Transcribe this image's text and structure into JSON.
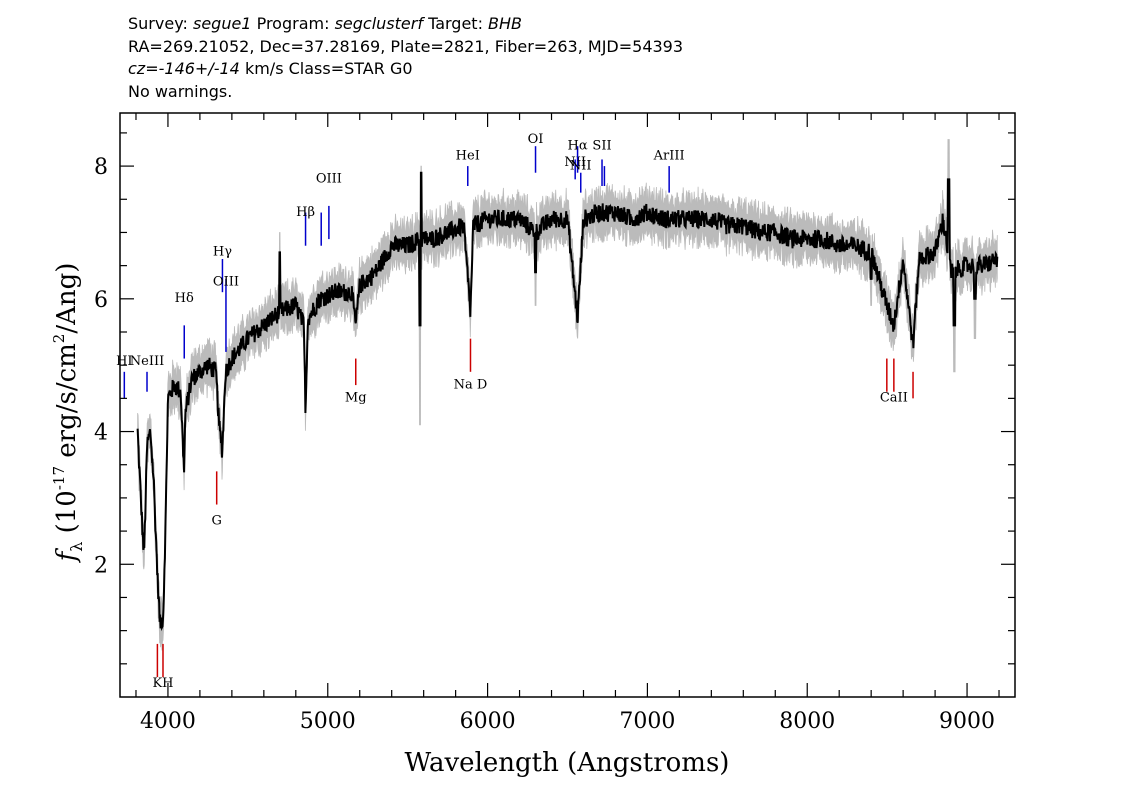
{
  "header": {
    "survey_label": "Survey:",
    "survey": "segue1",
    "program_label": "Program:",
    "program": "segclusterf",
    "target_label": "Target:",
    "target": "BHB",
    "line2": "RA=269.21052, Dec=37.28169, Plate=2821, Fiber=263, MJD=54393",
    "cz_label": "cz=",
    "cz_value": "-146+/-14",
    "cz_rest": " km/s Class=STAR G0",
    "warnings": "No warnings."
  },
  "chart_data": {
    "type": "line",
    "xlabel": "Wavelength (Angstroms)",
    "ylabel_f": "f",
    "ylabel_sub": "λ",
    "ylabel_pre": " (10",
    "ylabel_exp": "-17",
    "ylabel_mid": " erg/s/cm",
    "ylabel_exp2": "2",
    "ylabel_post": "/Ang)",
    "xlim": [
      3700,
      9300
    ],
    "ylim": [
      0,
      8.8
    ],
    "xticks": [
      4000,
      5000,
      6000,
      7000,
      8000,
      9000
    ],
    "xtick_labels": [
      "4000",
      "5000",
      "6000",
      "7000",
      "8000",
      "9000"
    ],
    "yticks": [
      2,
      4,
      6,
      8
    ],
    "ytick_labels": [
      "2",
      "4",
      "6",
      "8"
    ],
    "colors": {
      "flux": "#000000",
      "error": "#bbbbbb",
      "emission": "#0000cc",
      "absorption": "#cc0000"
    },
    "flux_anchors": [
      [
        3810,
        4.0
      ],
      [
        3830,
        3.0
      ],
      [
        3850,
        2.1
      ],
      [
        3870,
        3.8
      ],
      [
        3890,
        4.0
      ],
      [
        3910,
        3.3
      ],
      [
        3935,
        1.8
      ],
      [
        3950,
        1.1
      ],
      [
        3970,
        1.2
      ],
      [
        3985,
        2.6
      ],
      [
        4000,
        4.5
      ],
      [
        4040,
        4.7
      ],
      [
        4080,
        4.6
      ],
      [
        4100,
        3.4
      ],
      [
        4110,
        4.3
      ],
      [
        4150,
        4.8
      ],
      [
        4200,
        4.9
      ],
      [
        4250,
        5.0
      ],
      [
        4300,
        4.9
      ],
      [
        4320,
        4.1
      ],
      [
        4340,
        3.7
      ],
      [
        4360,
        4.9
      ],
      [
        4400,
        5.1
      ],
      [
        4500,
        5.4
      ],
      [
        4600,
        5.6
      ],
      [
        4700,
        5.8
      ],
      [
        4800,
        5.9
      ],
      [
        4850,
        5.6
      ],
      [
        4861,
        4.3
      ],
      [
        4875,
        5.7
      ],
      [
        4950,
        6.0
      ],
      [
        5050,
        6.1
      ],
      [
        5150,
        6.1
      ],
      [
        5175,
        5.6
      ],
      [
        5200,
        6.2
      ],
      [
        5300,
        6.4
      ],
      [
        5400,
        6.8
      ],
      [
        5500,
        6.8
      ],
      [
        5577,
        6.9
      ],
      [
        5650,
        6.9
      ],
      [
        5750,
        7.0
      ],
      [
        5850,
        7.1
      ],
      [
        5893,
        5.8
      ],
      [
        5910,
        7.1
      ],
      [
        6000,
        7.2
      ],
      [
        6100,
        7.2
      ],
      [
        6200,
        7.2
      ],
      [
        6300,
        7.0
      ],
      [
        6400,
        7.2
      ],
      [
        6500,
        7.2
      ],
      [
        6563,
        5.7
      ],
      [
        6600,
        7.2
      ],
      [
        6700,
        7.3
      ],
      [
        6800,
        7.3
      ],
      [
        6900,
        7.2
      ],
      [
        7000,
        7.3
      ],
      [
        7100,
        7.2
      ],
      [
        7200,
        7.2
      ],
      [
        7300,
        7.2
      ],
      [
        7400,
        7.2
      ],
      [
        7500,
        7.1
      ],
      [
        7600,
        7.1
      ],
      [
        7700,
        7.0
      ],
      [
        7800,
        7.0
      ],
      [
        7900,
        6.9
      ],
      [
        8000,
        6.9
      ],
      [
        8100,
        6.9
      ],
      [
        8200,
        6.8
      ],
      [
        8300,
        6.8
      ],
      [
        8400,
        6.7
      ],
      [
        8498,
        5.9
      ],
      [
        8542,
        5.6
      ],
      [
        8600,
        6.6
      ],
      [
        8662,
        5.3
      ],
      [
        8700,
        6.6
      ],
      [
        8800,
        6.7
      ],
      [
        8850,
        7.2
      ],
      [
        8900,
        6.4
      ],
      [
        9000,
        6.5
      ],
      [
        9100,
        6.5
      ],
      [
        9190,
        6.6
      ]
    ],
    "spikes": [
      {
        "x": 5577,
        "y": 5.6,
        "width": 6,
        "err": 1.5
      },
      {
        "x": 5585,
        "y": 7.9,
        "width": 4,
        "err": 0.1
      },
      {
        "x": 6300,
        "y": 6.4,
        "width": 6,
        "err": 0.5
      },
      {
        "x": 4700,
        "y": 6.7,
        "width": 4,
        "err": 0.3
      },
      {
        "x": 8400,
        "y": 6.3,
        "width": 6,
        "err": 0.4
      },
      {
        "x": 8885,
        "y": 7.8,
        "width": 6,
        "err": 0.6
      },
      {
        "x": 8920,
        "y": 5.6,
        "width": 6,
        "err": 0.7
      },
      {
        "x": 9050,
        "y": 6.0,
        "width": 6,
        "err": 0.6
      }
    ],
    "emission_lines": [
      {
        "label": "HI",
        "x": 3727,
        "y0": 4.5,
        "y1": 4.9,
        "label_y": 5.0
      },
      {
        "label": "NeIII",
        "x": 3869,
        "y0": 4.6,
        "y1": 4.9,
        "label_y": 5.0
      },
      {
        "label": "Hδ",
        "x": 4102,
        "y0": 5.1,
        "y1": 5.6,
        "label_y": 5.95
      },
      {
        "label": "Hγ",
        "x": 4341,
        "y0": 6.1,
        "y1": 6.6,
        "label_y": 6.65
      },
      {
        "label": "OIII",
        "x": 4363,
        "y0": 5.2,
        "y1": 6.3,
        "label_y": 6.2
      },
      {
        "label": "Hβ",
        "x": 4861,
        "y0": 6.8,
        "y1": 7.3,
        "label_y": 7.25
      },
      {
        "label": "",
        "x": 4959,
        "y0": 6.8,
        "y1": 7.3,
        "label_y": 0
      },
      {
        "label": "OIII",
        "x": 5007,
        "y0": 6.9,
        "y1": 7.4,
        "label_y": 7.75
      },
      {
        "label": "HeI",
        "x": 5876,
        "y0": 7.7,
        "y1": 8.0,
        "label_y": 8.1
      },
      {
        "label": "OI",
        "x": 6300,
        "y0": 7.9,
        "y1": 8.3,
        "label_y": 8.35
      },
      {
        "label": "NII",
        "x": 6548,
        "y0": 7.8,
        "y1": 8.1,
        "label_y": 8.0
      },
      {
        "label": "Hα",
        "x": 6563,
        "y0": 7.9,
        "y1": 8.3,
        "label_y": 8.25
      },
      {
        "label": "NII",
        "x": 6583,
        "y0": 7.6,
        "y1": 7.9,
        "label_y": 7.95
      },
      {
        "label": "SII",
        "x": 6716,
        "y0": 7.7,
        "y1": 8.1,
        "label_y": 8.25
      },
      {
        "label": "",
        "x": 6731,
        "y0": 7.7,
        "y1": 8.0,
        "label_y": 0
      },
      {
        "label": "ArIII",
        "x": 7136,
        "y0": 7.6,
        "y1": 8.0,
        "label_y": 8.1
      }
    ],
    "absorption_lines": [
      {
        "label": "",
        "x": 3934,
        "y0": 0.3,
        "y1": 0.8,
        "label_y": 0
      },
      {
        "label": "KH",
        "x": 3969,
        "y0": 0.3,
        "y1": 0.8,
        "label_y": 0.15
      },
      {
        "label": "G",
        "x": 4305,
        "y0": 2.9,
        "y1": 3.4,
        "label_y": 2.6
      },
      {
        "label": "Mg",
        "x": 5175,
        "y0": 4.7,
        "y1": 5.1,
        "label_y": 4.45
      },
      {
        "label": "Na D",
        "x": 5893,
        "y0": 4.9,
        "y1": 5.4,
        "label_y": 4.65
      },
      {
        "label": "",
        "x": 8498,
        "y0": 4.6,
        "y1": 5.1,
        "label_y": 0
      },
      {
        "label": "CaII",
        "x": 8542,
        "y0": 4.6,
        "y1": 5.1,
        "label_y": 4.45
      },
      {
        "label": "",
        "x": 8662,
        "y0": 4.5,
        "y1": 4.9,
        "label_y": 0
      }
    ]
  }
}
